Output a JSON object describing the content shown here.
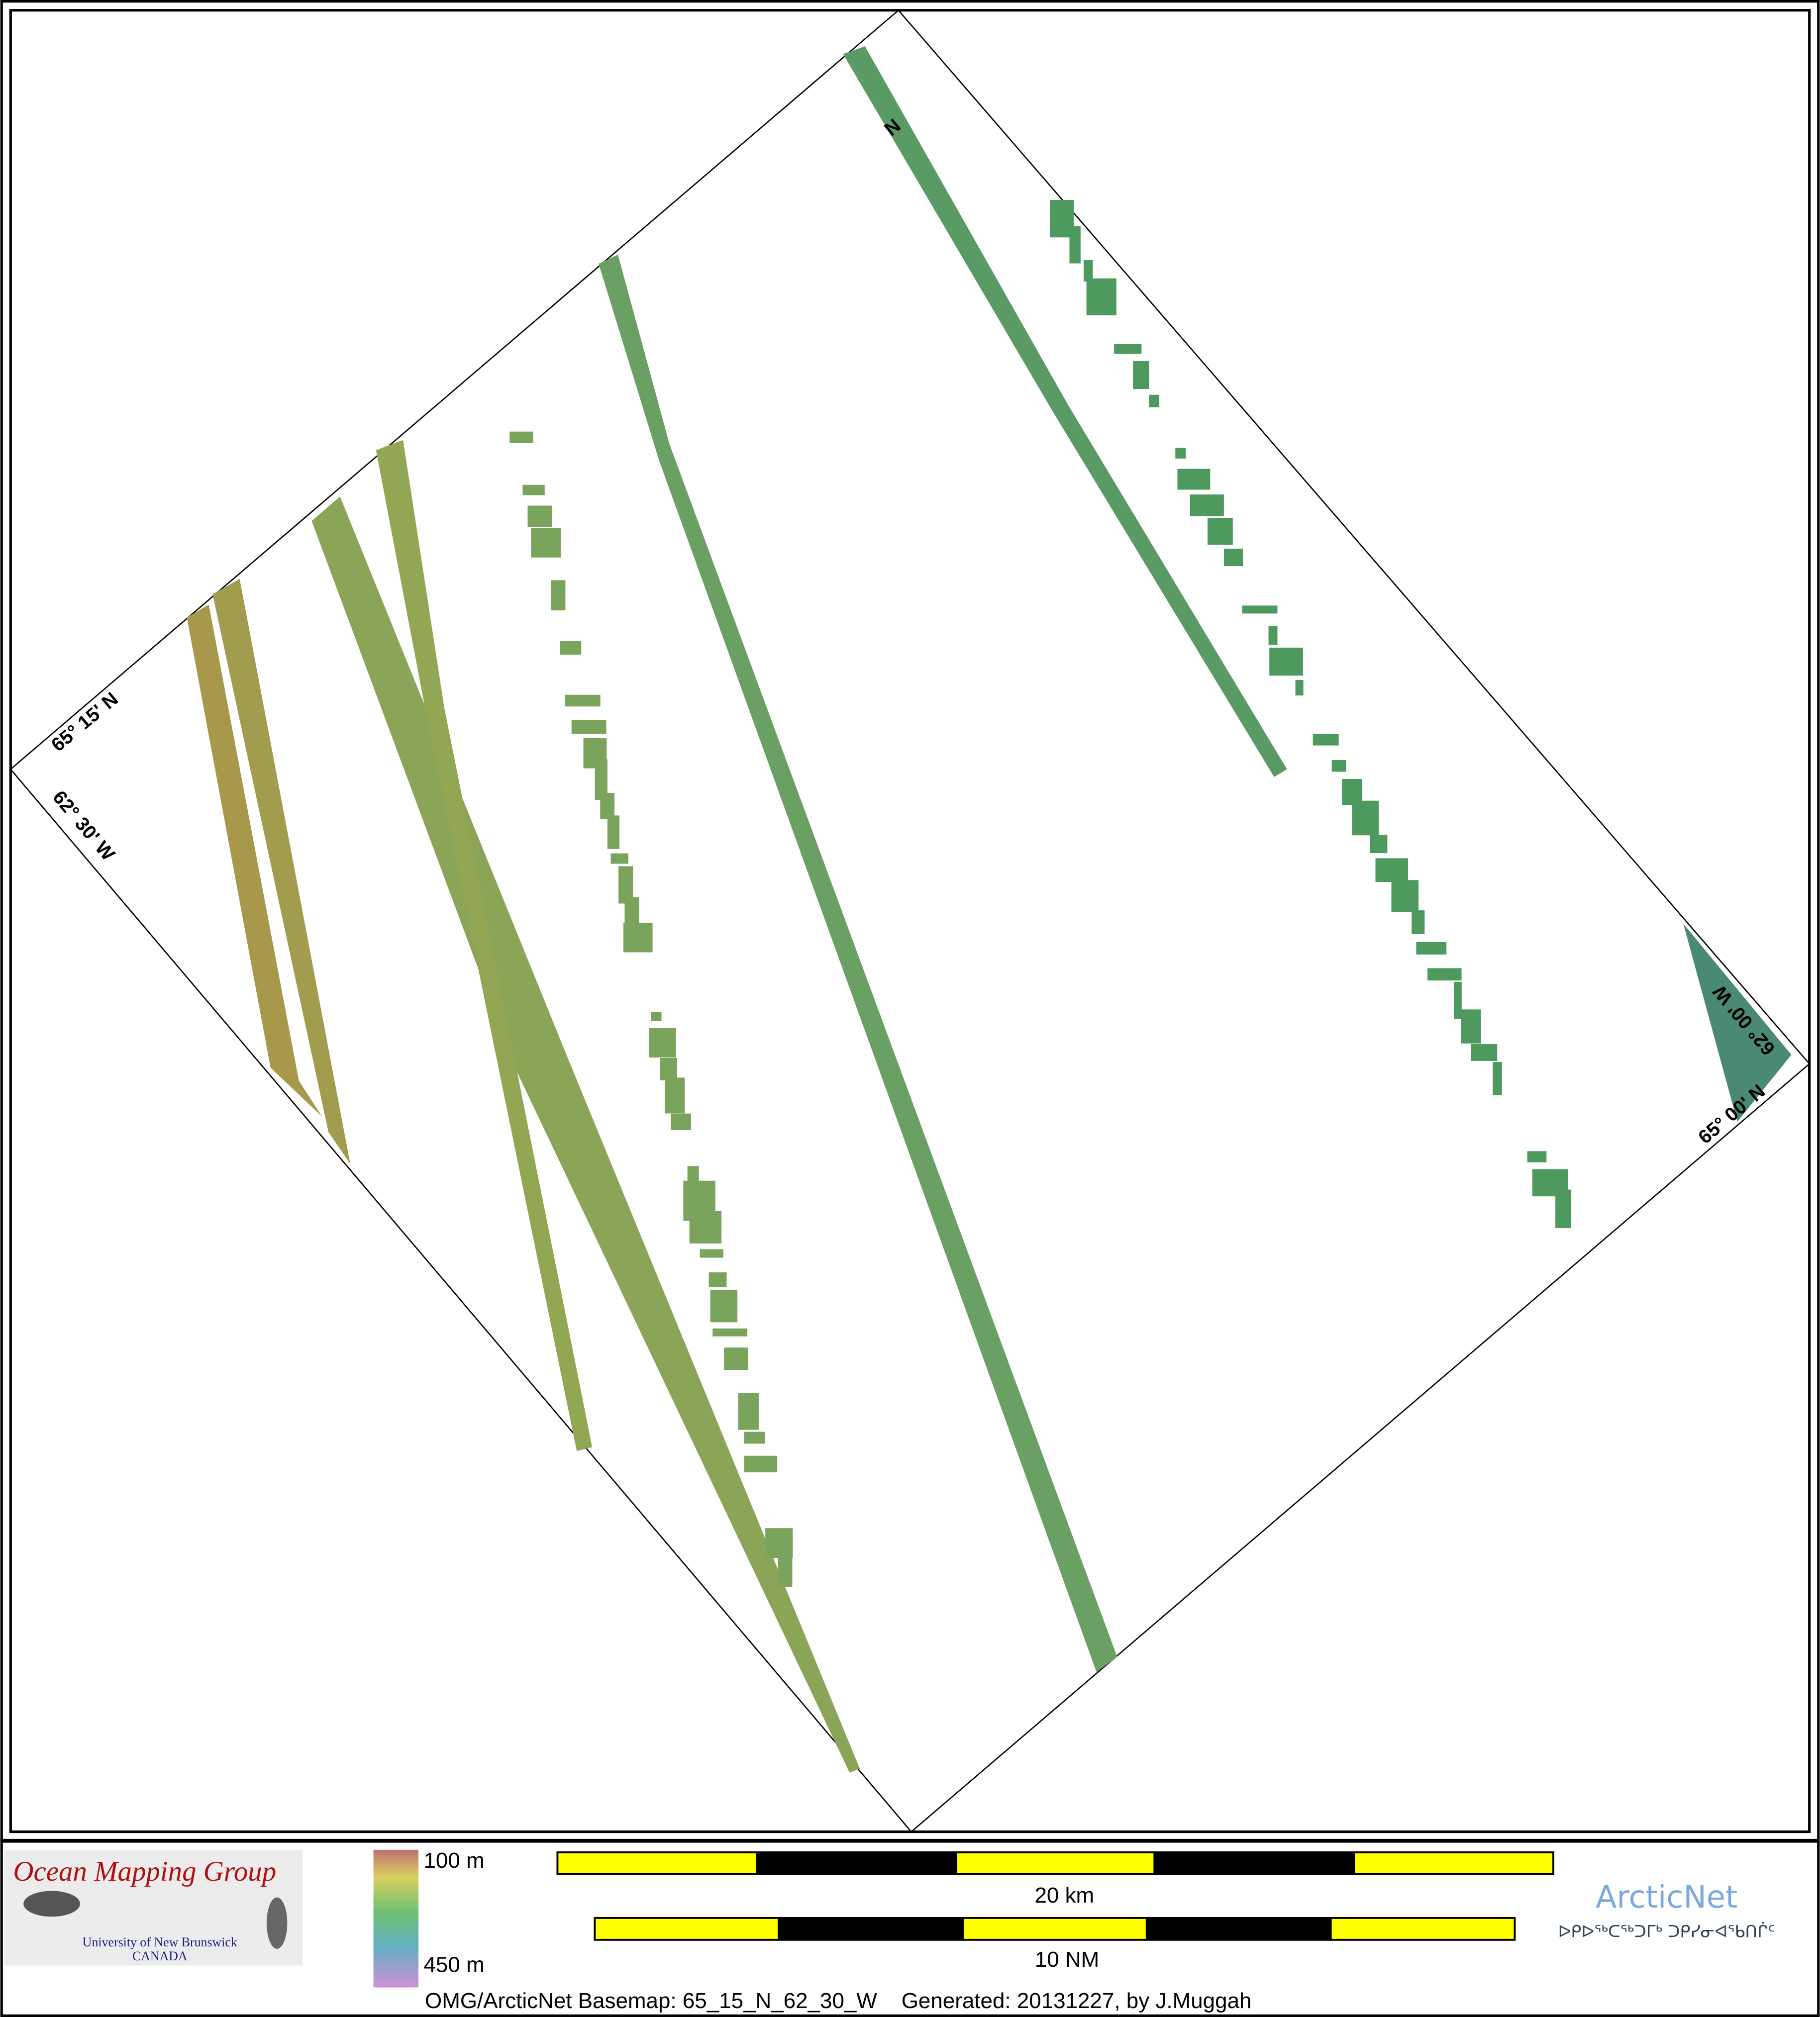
{
  "map": {
    "north_label": "N",
    "corner_labels": {
      "nw_lat": "65° 15' N",
      "nw_lon": "62° 30' W",
      "se_lon": "62° 00' W",
      "se_lat": "65° 00' N"
    }
  },
  "legend": {
    "logo_title": "Ocean Mapping Group",
    "logo_line1": "University of New Brunswick",
    "logo_line2": "CANADA",
    "depth_min": "100 m",
    "depth_max": "450 m",
    "scale_km": "20 km",
    "scale_nm": "10 NM",
    "arcticnet": "ArcticNet",
    "arcticnet_syllabics": "ᐅᑭᐅᖅᑕᖅᑐᒥᒃ ᑐᑭᓯᓂᐊᖃᑎᒌᑦ",
    "caption": "OMG/ArcticNet Basemap: 65_15_N_62_30_W    Generated: 20131227, by J.Muggah"
  },
  "colors": {
    "bar_yellow": "#ffff00",
    "bar_black": "#000000",
    "arcticnet": "#7aaadc",
    "omg_red": "#b01010",
    "unb_blue": "#1a1a8a"
  }
}
